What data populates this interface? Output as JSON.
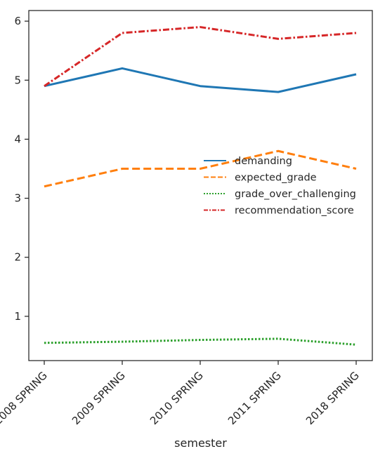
{
  "chart_data": {
    "type": "line",
    "categories": [
      "2008 SPRING",
      "2009 SPRING",
      "2010 SPRING",
      "2011 SPRING",
      "2018 SPRING"
    ],
    "xlabel": "semester",
    "ylabel": "",
    "ylim": [
      0.25,
      6.18
    ],
    "yticks": [
      1,
      2,
      3,
      4,
      5,
      6
    ],
    "grid": false,
    "legend_position": "center-right",
    "series": [
      {
        "name": "demanding",
        "values": [
          4.9,
          5.2,
          4.9,
          4.8,
          5.1
        ],
        "color": "#1f77b4",
        "style": "solid"
      },
      {
        "name": "expected_grade",
        "values": [
          3.2,
          3.5,
          3.5,
          3.8,
          3.5
        ],
        "color": "#ff7f0e",
        "style": "dashed"
      },
      {
        "name": "grade_over_challenging",
        "values": [
          0.55,
          0.57,
          0.6,
          0.62,
          0.52
        ],
        "color": "#2ca02c",
        "style": "dotted"
      },
      {
        "name": "recommendation_score",
        "values": [
          4.9,
          5.8,
          5.9,
          5.7,
          5.8
        ],
        "color": "#d62728",
        "style": "dashdot"
      }
    ]
  }
}
